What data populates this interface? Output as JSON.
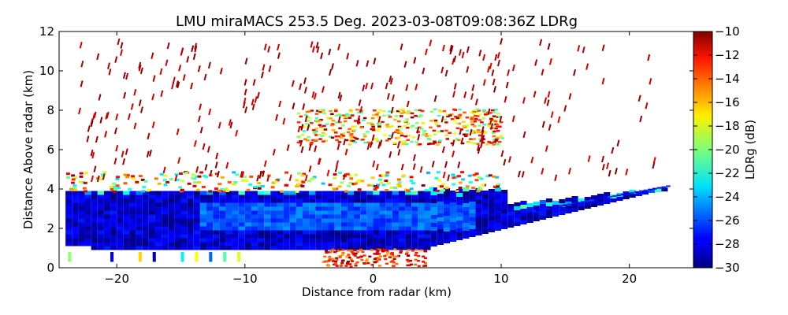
{
  "chart_data": {
    "type": "heatmap",
    "title": "LMU miraMACS 253.5 Deg. 2023-03-08T09:08:36Z  LDRg",
    "xlabel": "Distance from radar (km)",
    "ylabel": "Distance Above radar  (km)",
    "xlim": [
      -24.5,
      25
    ],
    "ylim": [
      0,
      12
    ],
    "xticks": [
      -20,
      -10,
      0,
      10,
      20
    ],
    "xtick_labels": [
      "−20",
      "−10",
      "0",
      "10",
      "20"
    ],
    "yticks": [
      0,
      2,
      4,
      6,
      8,
      10,
      12
    ],
    "ytick_labels": [
      "0",
      "2",
      "4",
      "6",
      "8",
      "10",
      "12"
    ],
    "colorbar": {
      "label": "LDRg (dB)",
      "vmin": -30,
      "vmax": -10,
      "colormap": "jet",
      "ticks": [
        -10,
        -12,
        -14,
        -16,
        -18,
        -20,
        -22,
        -24,
        -26,
        -28,
        -30
      ],
      "tick_labels": [
        "−10",
        "−12",
        "−14",
        "−16",
        "−18",
        "−20",
        "−22",
        "−24",
        "−26",
        "−28",
        "−30"
      ]
    },
    "regions": [
      {
        "name": "boundary-layer-core",
        "x_range": [
          -24,
          23
        ],
        "y_range": [
          0.8,
          4.0
        ],
        "ldr_db_typical": -28
      },
      {
        "name": "boundary-layer-top",
        "x_range": [
          -24,
          10
        ],
        "y_range": [
          3.8,
          4.8
        ],
        "ldr_db_typical": -20
      },
      {
        "name": "melting-layer-band",
        "x_range": [
          -6,
          10
        ],
        "y_range": [
          6.2,
          8.0
        ],
        "ldr_db_typical": -15
      },
      {
        "name": "near-surface-clutter",
        "x_range": [
          -4,
          4
        ],
        "y_range": [
          0,
          0.9
        ],
        "ldr_db_typical": -11
      },
      {
        "name": "sparse-upper-returns",
        "x_range": [
          -23,
          22
        ],
        "y_range": [
          4.5,
          11.5
        ],
        "ldr_db_typical": -10
      }
    ]
  }
}
